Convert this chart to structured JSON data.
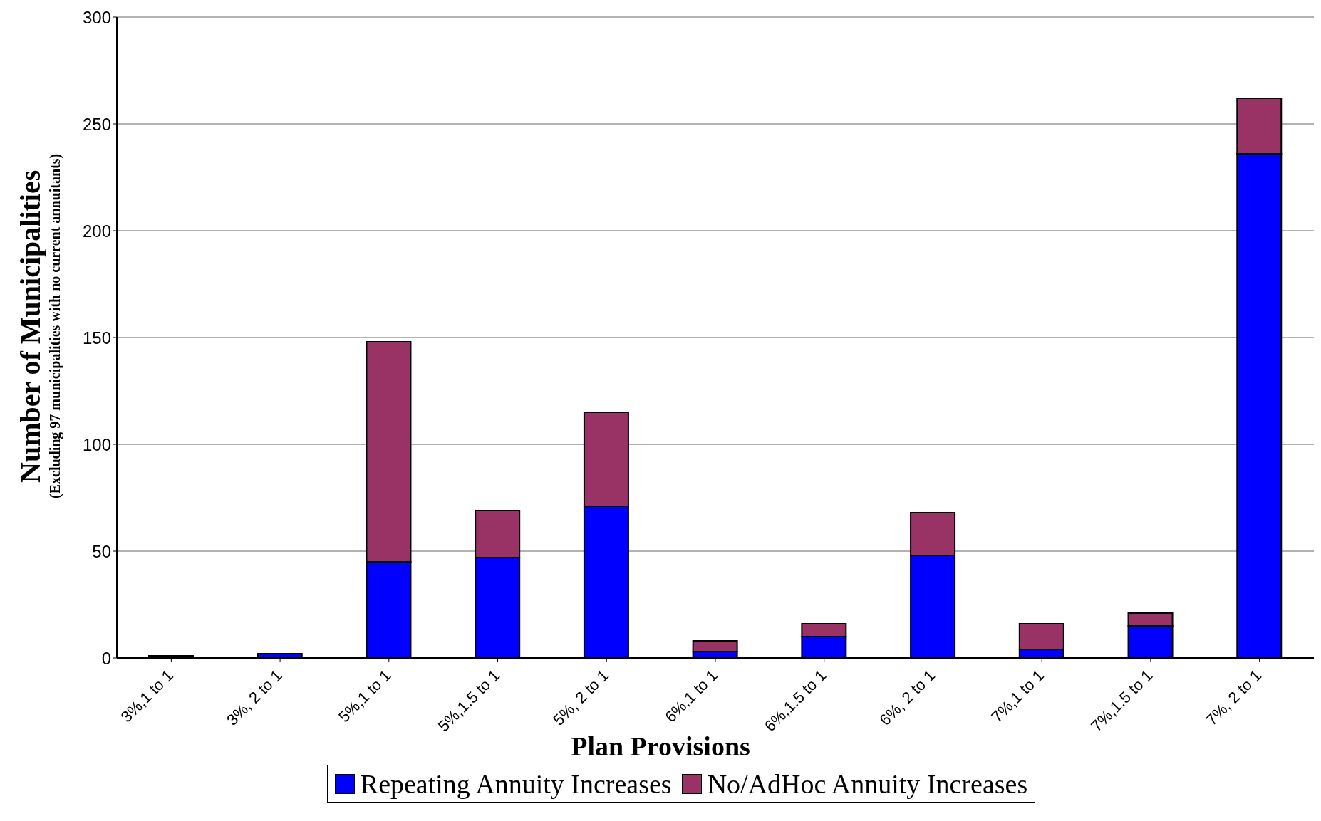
{
  "chart_data": {
    "type": "bar",
    "stacked": true,
    "xlabel": "Plan Provisions",
    "ylabel": "Number of Municipalities",
    "annotations": [
      "(Excluding 97 municipalities with no current annuitants)"
    ],
    "categories": [
      "3%,1 to 1",
      "3%, 2 to 1",
      "5%,1 to 1",
      "5%,1.5 to 1",
      "5%, 2 to 1",
      "6%,1 to 1",
      "6%,1.5 to 1",
      "6%, 2 to 1",
      "7%,1 to 1",
      "7%,1.5 to 1",
      "7%, 2 to 1"
    ],
    "series": [
      {
        "name": "Repeating Annuity Increases",
        "color": "#0000ff",
        "values": [
          1,
          2,
          45,
          47,
          71,
          3,
          10,
          48,
          4,
          15,
          236
        ]
      },
      {
        "name": "No/AdHoc Annuity Increases",
        "color": "#993366",
        "values": [
          0,
          0,
          103,
          22,
          44,
          5,
          6,
          20,
          12,
          6,
          26
        ]
      }
    ],
    "ylim": [
      0,
      300
    ],
    "yticks": [
      0,
      50,
      100,
      150,
      200,
      250,
      300
    ],
    "grid": "y",
    "legend": "bottom"
  }
}
